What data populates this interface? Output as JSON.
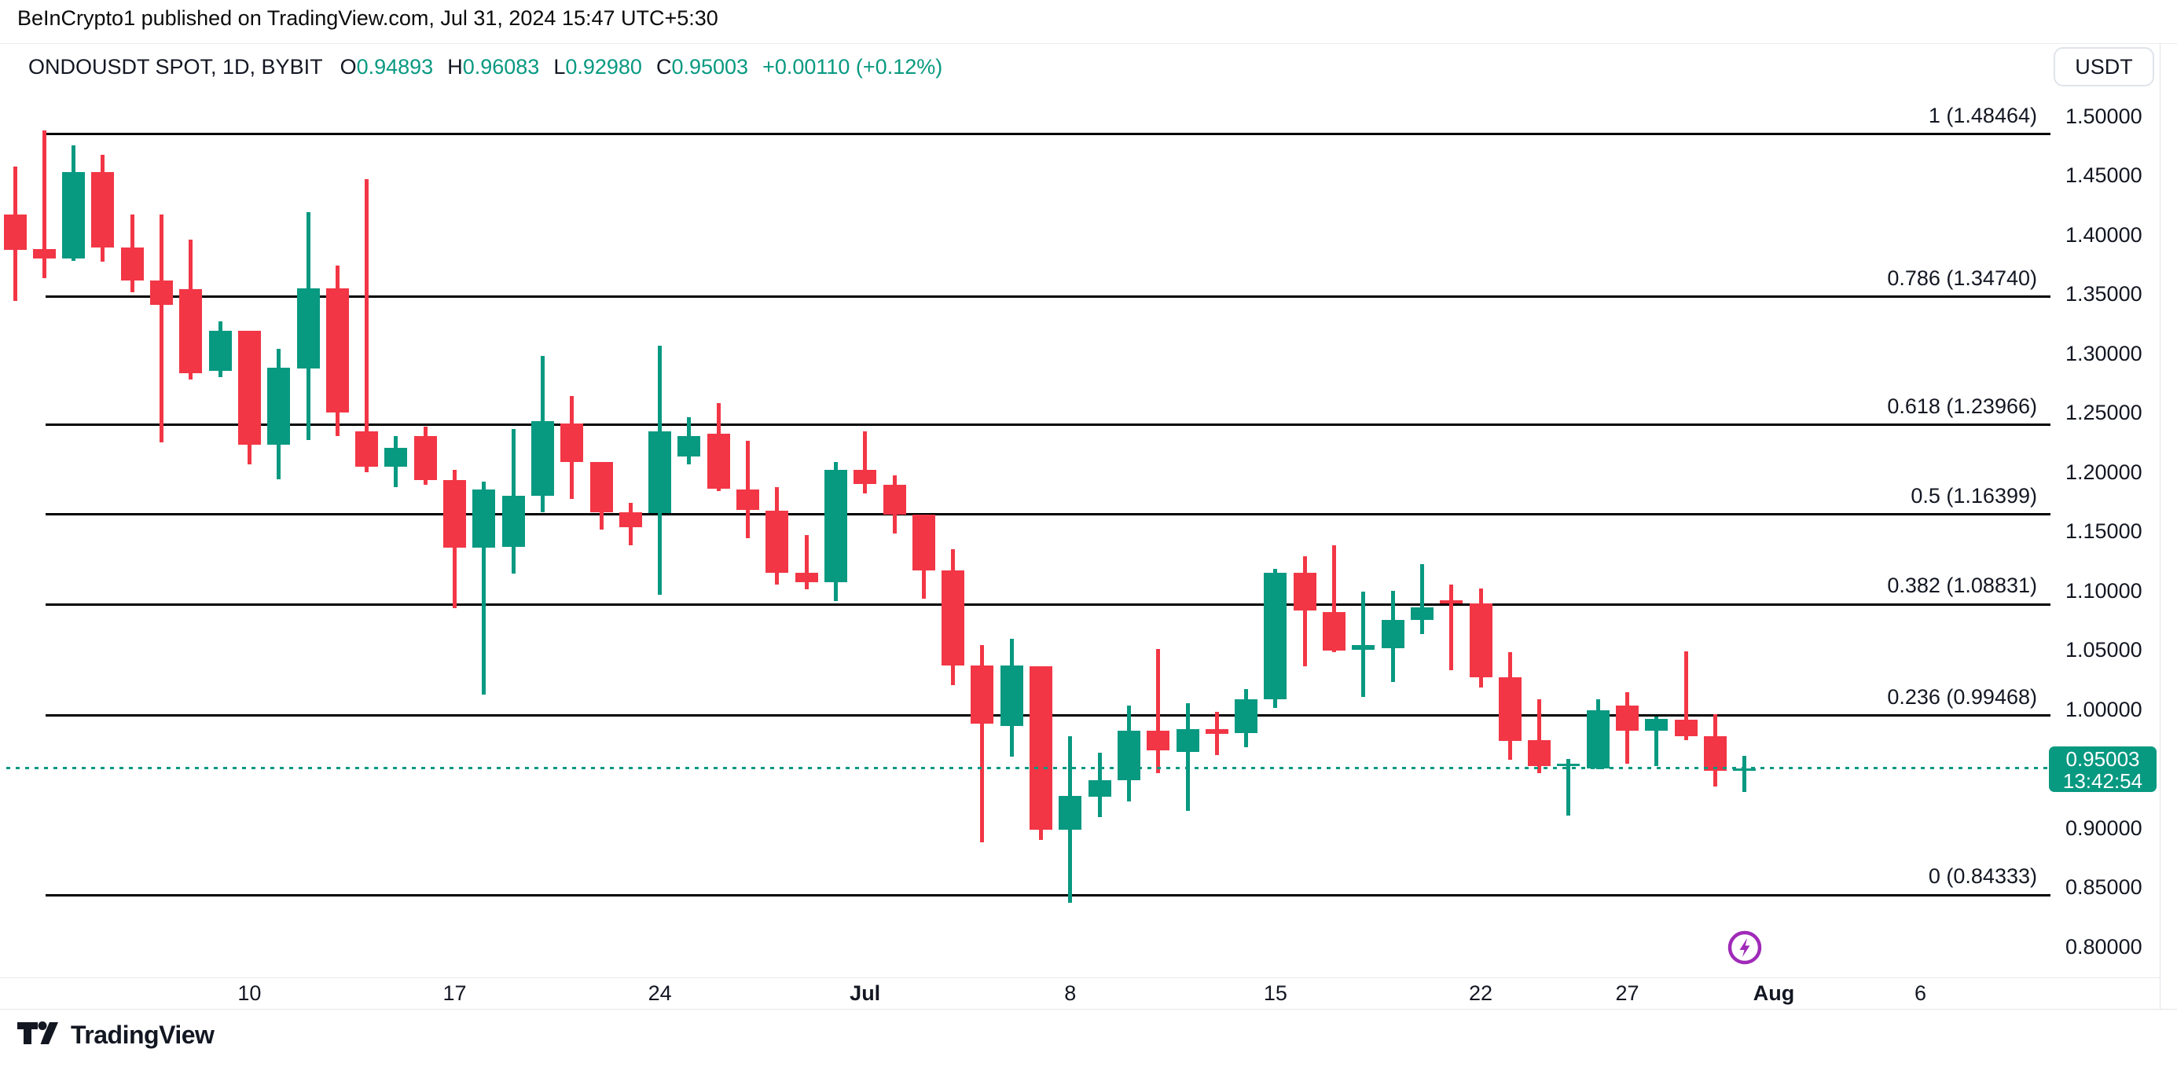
{
  "attribution": "BeInCrypto1 published on TradingView.com, Jul 31, 2024 15:47 UTC+5:30",
  "legend": {
    "symbol_title": "ONDOUSDT SPOT, 1D, BYBIT",
    "ohlc": [
      {
        "label": "O",
        "value": "0.94893"
      },
      {
        "label": "H",
        "value": "0.96083"
      },
      {
        "label": "L",
        "value": "0.92980"
      },
      {
        "label": "C",
        "value": "0.95003"
      }
    ],
    "change": "+0.00110 (+0.12%)",
    "value_color": "#089981"
  },
  "toolbar": {
    "currency_label": "USDT"
  },
  "price_axis": {
    "labels": [
      "1.50000",
      "1.45000",
      "1.40000",
      "1.35000",
      "1.30000",
      "1.25000",
      "1.20000",
      "1.15000",
      "1.10000",
      "1.05000",
      "1.00000",
      "0.90000",
      "0.85000",
      "0.80000"
    ],
    "current_price_label": {
      "price": "0.95003",
      "countdown": "13:42:54",
      "bg_color": "#089981"
    }
  },
  "time_axis": [
    {
      "label": "10",
      "day_index": 8,
      "emphasis": false
    },
    {
      "label": "17",
      "day_index": 15,
      "emphasis": false
    },
    {
      "label": "24",
      "day_index": 22,
      "emphasis": false
    },
    {
      "label": "Jul",
      "day_index": 29,
      "emphasis": true
    },
    {
      "label": "8",
      "day_index": 36,
      "emphasis": false
    },
    {
      "label": "15",
      "day_index": 43,
      "emphasis": false
    },
    {
      "label": "22",
      "day_index": 50,
      "emphasis": false
    },
    {
      "label": "27",
      "day_index": 55,
      "emphasis": false
    },
    {
      "label": "Aug",
      "day_index": 60,
      "emphasis": true
    },
    {
      "label": "6",
      "day_index": 65,
      "emphasis": false
    }
  ],
  "footer": {
    "brand": "TradingView"
  },
  "chart_data": {
    "type": "candlestick",
    "symbol": "ONDOUSDT",
    "market": "SPOT",
    "interval": "1D",
    "exchange": "BYBIT",
    "up_color": "#089981",
    "down_color": "#F23645",
    "ylim": [
      0.78,
      1.51
    ],
    "grid": false,
    "current_price": 0.95003,
    "fib_retracement": {
      "line_color": "#000000",
      "levels": [
        {
          "ratio": "1",
          "price": 1.48464,
          "display": "1 (1.48464)"
        },
        {
          "ratio": "0.786",
          "price": 1.3474,
          "display": "0.786 (1.34740)"
        },
        {
          "ratio": "0.618",
          "price": 1.23966,
          "display": "0.618 (1.23966)"
        },
        {
          "ratio": "0.5",
          "price": 1.16399,
          "display": "0.5 (1.16399)"
        },
        {
          "ratio": "0.382",
          "price": 1.08831,
          "display": "0.382 (1.08831)"
        },
        {
          "ratio": "0.236",
          "price": 0.99468,
          "display": "0.236 (0.99468)"
        },
        {
          "ratio": "0",
          "price": 0.84333,
          "display": "0 (0.84333)"
        }
      ]
    },
    "event_marker": {
      "type": "lightning",
      "color": "#A02BB8",
      "day_index": 59
    },
    "dates": [
      "2024-06-02",
      "2024-06-03",
      "2024-06-04",
      "2024-06-05",
      "2024-06-06",
      "2024-06-07",
      "2024-06-08",
      "2024-06-09",
      "2024-06-10",
      "2024-06-11",
      "2024-06-12",
      "2024-06-13",
      "2024-06-14",
      "2024-06-15",
      "2024-06-16",
      "2024-06-17",
      "2024-06-18",
      "2024-06-19",
      "2024-06-20",
      "2024-06-21",
      "2024-06-22",
      "2024-06-23",
      "2024-06-24",
      "2024-06-25",
      "2024-06-26",
      "2024-06-27",
      "2024-06-28",
      "2024-06-29",
      "2024-06-30",
      "2024-07-01",
      "2024-07-02",
      "2024-07-03",
      "2024-07-04",
      "2024-07-05",
      "2024-07-06",
      "2024-07-07",
      "2024-07-08",
      "2024-07-09",
      "2024-07-10",
      "2024-07-11",
      "2024-07-12",
      "2024-07-13",
      "2024-07-14",
      "2024-07-15",
      "2024-07-16",
      "2024-07-17",
      "2024-07-18",
      "2024-07-19",
      "2024-07-20",
      "2024-07-21",
      "2024-07-22",
      "2024-07-23",
      "2024-07-24",
      "2024-07-25",
      "2024-07-26",
      "2024-07-27",
      "2024-07-28",
      "2024-07-29",
      "2024-07-30",
      "2024-07-31"
    ],
    "open": [
      1.417,
      1.388,
      1.38,
      1.453,
      1.389,
      1.361,
      1.354,
      1.285,
      1.319,
      1.223,
      1.287,
      1.355,
      1.234,
      1.204,
      1.23,
      1.193,
      1.136,
      1.137,
      1.18,
      1.241,
      1.208,
      1.166,
      1.165,
      1.213,
      1.232,
      1.185,
      1.167,
      1.115,
      1.107,
      1.202,
      1.189,
      1.164,
      1.117,
      1.037,
      0.986,
      1.036,
      0.898,
      0.926,
      0.94,
      0.982,
      0.964,
      0.983,
      0.98,
      1.008,
      1.115,
      1.082,
      1.05,
      1.051,
      1.075,
      1.092,
      1.089,
      1.027,
      0.974,
      0.952,
      0.95,
      1.003,
      0.982,
      0.991,
      0.977,
      0.94893
    ],
    "high": [
      1.457,
      1.488,
      1.475,
      1.467,
      1.417,
      1.417,
      1.396,
      1.327,
      1.319,
      1.304,
      1.419,
      1.374,
      1.447,
      1.23,
      1.238,
      1.202,
      1.192,
      1.236,
      1.298,
      1.264,
      1.208,
      1.174,
      1.306,
      1.246,
      1.258,
      1.226,
      1.187,
      1.147,
      1.208,
      1.234,
      1.197,
      1.164,
      1.135,
      1.054,
      1.059,
      1.036,
      0.977,
      0.963,
      1.003,
      1.051,
      1.005,
      0.998,
      1.017,
      1.118,
      1.129,
      1.138,
      1.099,
      1.1,
      1.122,
      1.105,
      1.102,
      1.048,
      1.008,
      0.958,
      1.008,
      1.014,
      0.994,
      1.049,
      0.996,
      0.96083
    ],
    "low": [
      1.344,
      1.363,
      1.378,
      1.377,
      1.351,
      1.225,
      1.278,
      1.28,
      1.206,
      1.194,
      1.227,
      1.23,
      1.2,
      1.187,
      1.189,
      1.085,
      1.012,
      1.114,
      1.166,
      1.177,
      1.151,
      1.138,
      1.096,
      1.206,
      1.184,
      1.144,
      1.105,
      1.101,
      1.091,
      1.182,
      1.148,
      1.093,
      1.02,
      0.888,
      0.96,
      0.89,
      0.837,
      0.909,
      0.922,
      0.946,
      0.914,
      0.961,
      0.968,
      1.001,
      1.036,
      1.048,
      1.01,
      1.023,
      1.063,
      1.033,
      1.018,
      0.957,
      0.946,
      0.91,
      0.949,
      0.954,
      0.952,
      0.974,
      0.935,
      0.9298
    ],
    "close": [
      1.387,
      1.38,
      1.453,
      1.389,
      1.361,
      1.341,
      1.283,
      1.319,
      1.223,
      1.288,
      1.355,
      1.25,
      1.204,
      1.22,
      1.193,
      1.136,
      1.185,
      1.18,
      1.243,
      1.208,
      1.166,
      1.153,
      1.234,
      1.23,
      1.186,
      1.168,
      1.115,
      1.107,
      1.202,
      1.19,
      1.164,
      1.117,
      1.037,
      0.988,
      1.037,
      0.898,
      0.927,
      0.94,
      0.982,
      0.965,
      0.983,
      0.979,
      1.008,
      1.115,
      1.083,
      1.049,
      1.054,
      1.075,
      1.086,
      1.089,
      1.027,
      0.973,
      0.952,
      0.954,
      0.999,
      0.982,
      0.992,
      0.977,
      0.948,
      0.95003
    ]
  }
}
